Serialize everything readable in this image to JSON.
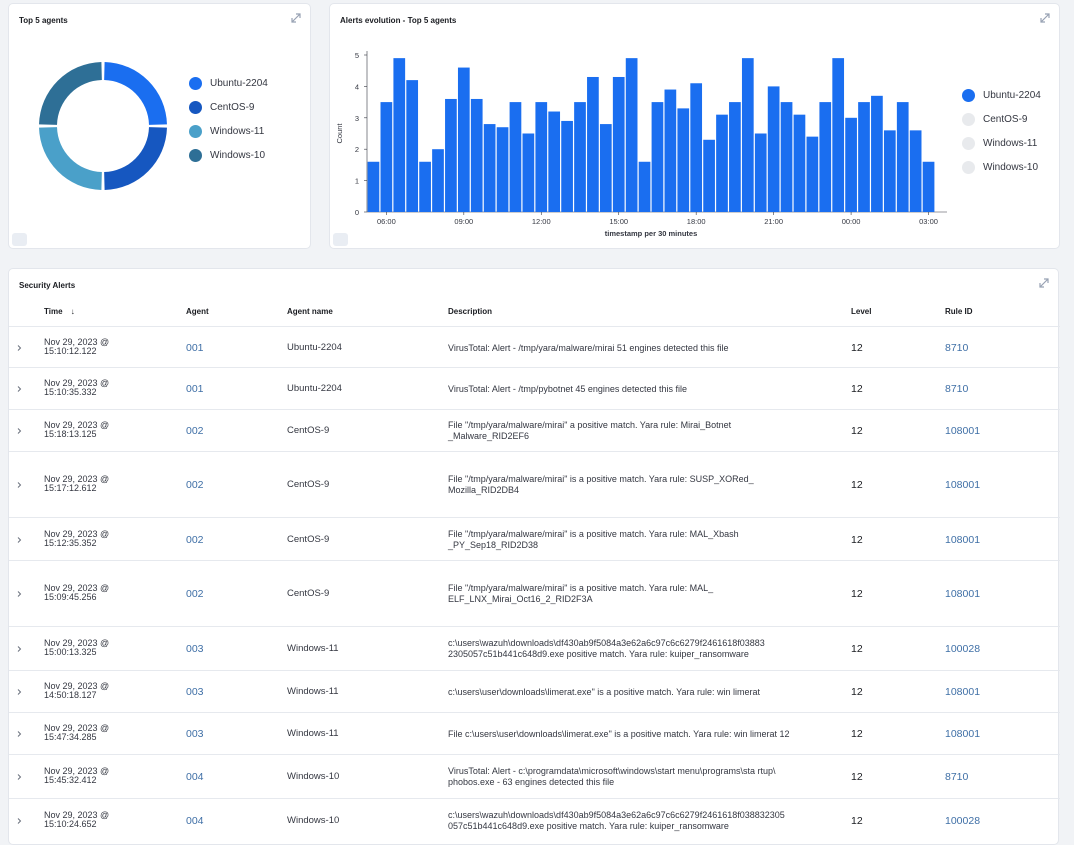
{
  "top_agents_panel": {
    "title": "Top 5 agents",
    "legend": [
      {
        "label": "Ubuntu-2204",
        "color": "#1a6ef0"
      },
      {
        "label": "CentOS-9",
        "color": "#1657c0"
      },
      {
        "label": "Windows-11",
        "color": "#4aa0c9"
      },
      {
        "label": "Windows-10",
        "color": "#2e6f96"
      }
    ]
  },
  "evolution_panel": {
    "title": "Alerts evolution - Top 5 agents",
    "legend": [
      {
        "label": "Ubuntu-2204",
        "color": "#1a6ef0"
      },
      {
        "label": "CentOS-9",
        "color": "#e8eaed"
      },
      {
        "label": "Windows-11",
        "color": "#e8eaed"
      },
      {
        "label": "Windows-10",
        "color": "#e8eaed"
      }
    ]
  },
  "chart_data": [
    {
      "type": "pie",
      "title": "Top 5 agents",
      "categories": [
        "Ubuntu-2204",
        "CentOS-9",
        "Windows-11",
        "Windows-10"
      ],
      "values": [
        25,
        25,
        25,
        25
      ],
      "donut": true,
      "colors": [
        "#1a6ef0",
        "#1657c0",
        "#4aa0c9",
        "#2e6f96"
      ],
      "legend": "right"
    },
    {
      "type": "bar",
      "title": "Alerts evolution - Top 5 agents",
      "xlabel": "timestamp per 30 minutes",
      "ylabel": "Count",
      "ylim": [
        0,
        5
      ],
      "yticks": [
        "0",
        "1",
        "2",
        "3",
        "4",
        "5"
      ],
      "xticks": [
        "06:00",
        "09:00",
        "12:00",
        "15:00",
        "18:00",
        "21:00",
        "00:00",
        "03:00"
      ],
      "series": [
        {
          "name": "Ubuntu-2204",
          "color": "#1a6ef0",
          "values": [
            1.6,
            3.5,
            4.9,
            4.2,
            1.6,
            2.0,
            3.6,
            4.6,
            3.6,
            2.8,
            2.7,
            3.5,
            2.5,
            3.5,
            3.2,
            2.9,
            3.5,
            4.3,
            2.8,
            4.3,
            4.9,
            1.6,
            3.5,
            3.9,
            3.3,
            4.1,
            2.3,
            3.1,
            3.5,
            4.9,
            2.5,
            4.0,
            3.5,
            3.1,
            2.4,
            3.5,
            4.9,
            3.0,
            3.5,
            3.7,
            2.6,
            3.5,
            2.6,
            1.6
          ]
        }
      ],
      "legend": "right"
    }
  ],
  "alerts_panel": {
    "title": "Security Alerts",
    "columns": {
      "time": "Time",
      "agent": "Agent",
      "name": "Agent name",
      "description": "Description",
      "level": "Level",
      "rule": "Rule ID"
    },
    "rows": [
      {
        "time1": "Nov 29, 2023 @",
        "time2": "15:10:12.122",
        "agent": "001",
        "name": "Ubuntu-2204",
        "desc1": "VirusTotal: Alert - /tmp/yara/malware/mirai 51 engines detected this file",
        "desc2": "",
        "level": "12",
        "rule": "8710"
      },
      {
        "time1": "Nov 29, 2023 @",
        "time2": "15:10:35.332",
        "agent": "001",
        "name": "Ubuntu-2204",
        "desc1": "VirusTotal: Alert - /tmp/pybotnet 45 engines detected this file",
        "desc2": "",
        "level": "12",
        "rule": "8710"
      },
      {
        "time1": "Nov 29, 2023 @",
        "time2": "15:18:13.125",
        "agent": "002",
        "name": "CentOS-9",
        "desc1": "File \"/tmp/yara/malware/mirai\" a positive match. Yara rule: Mirai_Botnet",
        "desc2": "_Malware_RID2EF6",
        "level": "12",
        "rule": "108001"
      },
      {
        "time1": "Nov 29, 2023 @",
        "time2": "15:17:12.612",
        "agent": "002",
        "name": "CentOS-9",
        "desc1": "File \"/tmp/yara/malware/mirai\" is a positive match. Yara rule: SUSP_XORed_",
        "desc2": "Mozilla_RID2DB4",
        "level": "12",
        "rule": "108001"
      },
      {
        "time1": "Nov 29, 2023 @",
        "time2": "15:12:35.352",
        "agent": "002",
        "name": "CentOS-9",
        "desc1": "File \"/tmp/yara/malware/mirai\" is a positive match. Yara rule: MAL_Xbash",
        "desc2": "_PY_Sep18_RID2D38",
        "level": "12",
        "rule": "108001"
      },
      {
        "time1": "Nov 29, 2023 @",
        "time2": "15:09:45.256",
        "agent": "002",
        "name": "CentOS-9",
        "desc1": "File \"/tmp/yara/malware/mirai\" is a positive match. Yara rule: MAL_",
        "desc2": "ELF_LNX_Mirai_Oct16_2_RID2F3A",
        "level": "12",
        "rule": "108001"
      },
      {
        "time1": "Nov 29, 2023 @",
        "time2": "15:00:13.325",
        "agent": "003",
        "name": "Windows-11",
        "desc1": "c:\\users\\wazuh\\downloads\\df430ab9f5084a3e62a6c97c6c6279f2461618f03883",
        "desc2": "2305057c51b441c648d9.exe positive match. Yara rule: kuiper_ransomware",
        "level": "12",
        "rule": "100028"
      },
      {
        "time1": "Nov 29, 2023 @",
        "time2": "14:50:18.127",
        "agent": "003",
        "name": "Windows-11",
        "desc1": "c:\\users\\user\\downloads\\limerat.exe\" is a positive match. Yara rule: win limerat",
        "desc2": "",
        "level": "12",
        "rule": "108001"
      },
      {
        "time1": "Nov 29, 2023 @",
        "time2": "15:47:34.285",
        "agent": "003",
        "name": "Windows-11",
        "desc1": "File c:\\users\\user\\downloads\\limerat.exe\" is a positive match. Yara rule: win limerat 12",
        "desc2": "",
        "level": "12",
        "rule": "108001"
      },
      {
        "time1": "Nov 29, 2023 @",
        "time2": "15:45:32.412",
        "agent": "004",
        "name": "Windows-10",
        "desc1": "VirusTotal: Alert - c:\\programdata\\microsoft\\windows\\start menu\\programs\\sta rtup\\",
        "desc2": "phobos.exe - 63 engines detected this file",
        "level": "12",
        "rule": "8710"
      },
      {
        "time1": "Nov 29, 2023 @",
        "time2": "15:10:24.652",
        "agent": "004",
        "name": "Windows-10",
        "desc1": "c:\\users\\wazuh\\downloads\\df430ab9f5084a3e62a6c97c6c6279f2461618f038832305",
        "desc2": "057c51b441c648d9.exe positive match. Yara rule: kuiper_ransomware",
        "level": "12",
        "rule": "100028"
      }
    ]
  }
}
